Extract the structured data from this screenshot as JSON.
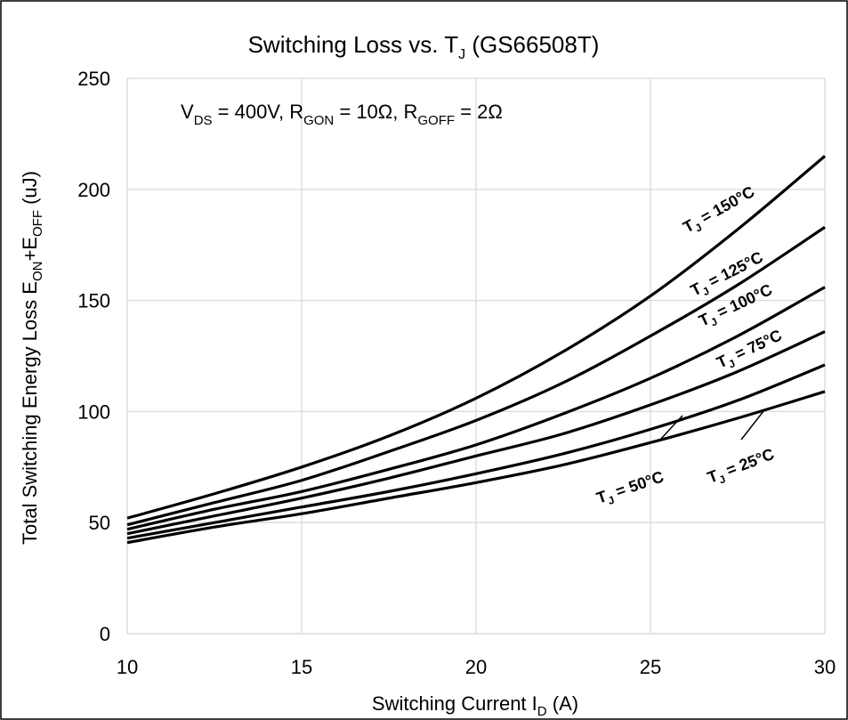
{
  "chart_data": {
    "type": "line",
    "title_main": "Switching Loss vs. T",
    "title_sub": "J",
    "title_tail": " (GS66508T)",
    "conditions": {
      "vds_main": "V",
      "vds_sub": "DS",
      "vds_tail": " = 400V, R",
      "rgon_sub": "GON",
      "rgon_tail": " = 10Ω, R",
      "rgoff_sub": "GOFF",
      "rgoff_tail": " = 2Ω"
    },
    "xlabel_main": "Switching Current I",
    "xlabel_sub": "D",
    "xlabel_tail": " (A)",
    "ylabel_a": "Total Switching Energy Loss E",
    "ylabel_sub1": "ON",
    "ylabel_b": "+E",
    "ylabel_sub2": "OFF",
    "ylabel_c": " (uJ)",
    "xlim": [
      10,
      30
    ],
    "ylim": [
      0,
      250
    ],
    "xticks": [
      10,
      15,
      20,
      25,
      30
    ],
    "yticks": [
      0,
      50,
      100,
      150,
      200,
      250
    ],
    "grid": true,
    "line_color": "#000000",
    "grid_color": "#d9d9d9",
    "x": [
      10,
      12.5,
      15,
      17.5,
      20,
      22.5,
      25,
      27.5,
      30
    ],
    "series": [
      {
        "label_main": "T",
        "label_sub": "J",
        "label_tail": " = 150°C",
        "values": [
          52,
          63,
          75,
          89,
          106,
          127,
          152,
          182,
          215
        ]
      },
      {
        "label_main": "T",
        "label_sub": "J",
        "label_tail": " = 125°C",
        "values": [
          49,
          59,
          69,
          82,
          96,
          113,
          134,
          157,
          183
        ]
      },
      {
        "label_main": "T",
        "label_sub": "J",
        "label_tail": " = 100°C",
        "values": [
          47,
          56,
          64,
          74,
          85,
          99,
          115,
          134,
          156
        ]
      },
      {
        "label_main": "T",
        "label_sub": "J",
        "label_tail": " = 75°C",
        "values": [
          45,
          53,
          61,
          70,
          80,
          90,
          103,
          118,
          136
        ]
      },
      {
        "label_main": "T",
        "label_sub": "J",
        "label_tail": " = 50°C",
        "values": [
          43,
          50,
          57,
          64,
          72,
          81,
          92,
          105,
          121
        ]
      },
      {
        "label_main": "T",
        "label_sub": "J",
        "label_tail": " = 25°C",
        "values": [
          41,
          48,
          54,
          61,
          68,
          76,
          86,
          97,
          109
        ]
      }
    ]
  }
}
